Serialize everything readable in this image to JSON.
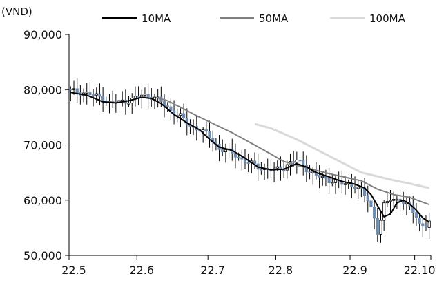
{
  "chart_data": {
    "type": "candlestick",
    "title": "",
    "ylabel_unit": "(VND)",
    "ylim": [
      50000,
      90000
    ],
    "yticks": [
      50000,
      60000,
      70000,
      80000,
      90000
    ],
    "ytick_labels": [
      "50,000",
      "60,000",
      "70,000",
      "80,000",
      "90,000"
    ],
    "xtick_labels": [
      "22.5",
      "22.6",
      "22.7",
      "22.8",
      "22.9",
      "22.10"
    ],
    "legend": {
      "placement": "top",
      "entries": [
        {
          "name": "10MA",
          "color": "#000000"
        },
        {
          "name": "50MA",
          "color": "#808080"
        },
        {
          "name": "100MA",
          "color": "#d9d9d9"
        }
      ]
    },
    "colors": {
      "down_fill": "#6e8bb0",
      "up_fill": "#ffffff",
      "candle_edge": "#000000"
    },
    "grid": false,
    "months": [
      {
        "label": "22.5",
        "start_index": 0
      },
      {
        "label": "22.6",
        "start_index": 21
      },
      {
        "label": "22.7",
        "start_index": 43
      },
      {
        "label": "22.8",
        "start_index": 64
      },
      {
        "label": "22.9",
        "start_index": 87
      },
      {
        "label": "22.10",
        "start_index": 107
      }
    ],
    "close_anchors": [
      [
        0,
        79800
      ],
      [
        6,
        79200
      ],
      [
        10,
        78500
      ],
      [
        12,
        77600
      ],
      [
        18,
        78000
      ],
      [
        22,
        79000
      ],
      [
        26,
        78600
      ],
      [
        28,
        77800
      ],
      [
        31,
        76200
      ],
      [
        34,
        75200
      ],
      [
        37,
        73400
      ],
      [
        40,
        72800
      ],
      [
        42,
        72000
      ],
      [
        44,
        70800
      ],
      [
        46,
        69200
      ],
      [
        48,
        69000
      ],
      [
        51,
        68200
      ],
      [
        53,
        67300
      ],
      [
        56,
        66600
      ],
      [
        58,
        66000
      ],
      [
        60,
        65600
      ],
      [
        63,
        65500
      ],
      [
        66,
        65900
      ],
      [
        68,
        66800
      ],
      [
        70,
        67200
      ],
      [
        72,
        66300
      ],
      [
        74,
        65000
      ],
      [
        76,
        64500
      ],
      [
        78,
        64000
      ],
      [
        80,
        63600
      ],
      [
        82,
        63400
      ],
      [
        84,
        63000
      ],
      [
        86,
        62800
      ],
      [
        88,
        62600
      ],
      [
        90,
        61800
      ],
      [
        92,
        60000
      ],
      [
        93,
        58600
      ],
      [
        94,
        56800
      ],
      [
        95,
        54300
      ],
      [
        96,
        56400
      ],
      [
        97,
        59000
      ],
      [
        99,
        60200
      ],
      [
        102,
        60000
      ],
      [
        104,
        59200
      ],
      [
        106,
        58000
      ],
      [
        107,
        57000
      ],
      [
        108,
        55600
      ],
      [
        110,
        55400
      ],
      [
        111,
        56000
      ]
    ],
    "ma10_anchors": [
      [
        0,
        79500
      ],
      [
        5,
        79000
      ],
      [
        10,
        77800
      ],
      [
        14,
        77600
      ],
      [
        18,
        78000
      ],
      [
        22,
        78600
      ],
      [
        25,
        78400
      ],
      [
        28,
        77500
      ],
      [
        32,
        75500
      ],
      [
        36,
        74000
      ],
      [
        40,
        72700
      ],
      [
        43,
        71000
      ],
      [
        46,
        69600
      ],
      [
        50,
        69000
      ],
      [
        54,
        67600
      ],
      [
        58,
        66000
      ],
      [
        62,
        65500
      ],
      [
        66,
        65600
      ],
      [
        70,
        66600
      ],
      [
        73,
        66000
      ],
      [
        76,
        65000
      ],
      [
        80,
        64200
      ],
      [
        84,
        63400
      ],
      [
        88,
        62900
      ],
      [
        91,
        62200
      ],
      [
        93,
        61000
      ],
      [
        95,
        59000
      ],
      [
        97,
        57000
      ],
      [
        99,
        57500
      ],
      [
        101,
        59500
      ],
      [
        103,
        60000
      ],
      [
        105,
        59300
      ],
      [
        107,
        58200
      ],
      [
        109,
        56800
      ],
      [
        111,
        56000
      ]
    ],
    "ma50_anchors": [
      [
        27,
        78500
      ],
      [
        30,
        78000
      ],
      [
        40,
        75000
      ],
      [
        50,
        72200
      ],
      [
        60,
        69000
      ],
      [
        66,
        67000
      ],
      [
        72,
        66000
      ],
      [
        80,
        64800
      ],
      [
        90,
        63500
      ],
      [
        95,
        62000
      ],
      [
        100,
        61000
      ],
      [
        105,
        60500
      ],
      [
        111,
        59200
      ]
    ],
    "ma100_anchors": [
      [
        57,
        73800
      ],
      [
        62,
        73000
      ],
      [
        70,
        71000
      ],
      [
        80,
        68000
      ],
      [
        90,
        65000
      ],
      [
        95,
        64300
      ],
      [
        100,
        63600
      ],
      [
        105,
        63000
      ],
      [
        111,
        62200
      ]
    ]
  }
}
